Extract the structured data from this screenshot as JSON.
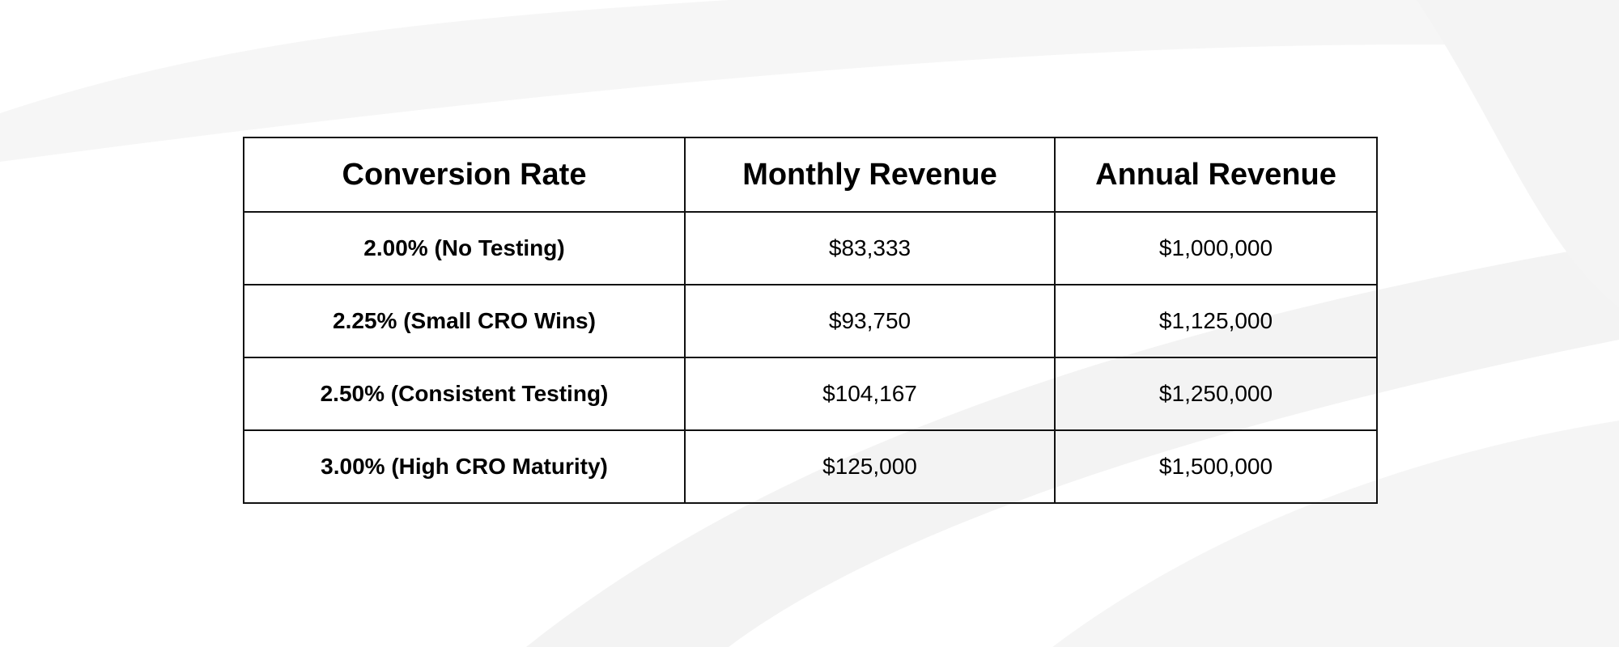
{
  "table": {
    "headers": [
      "Conversion Rate",
      "Monthly Revenue",
      "Annual Revenue"
    ],
    "rows": [
      [
        "2.00% (No Testing)",
        "$83,333",
        "$1,000,000"
      ],
      [
        "2.25% (Small CRO Wins)",
        "$93,750",
        "$1,125,000"
      ],
      [
        "2.50% (Consistent Testing)",
        "$104,167",
        "$1,250,000"
      ],
      [
        "3.00% (High CRO Maturity)",
        "$125,000",
        "$1,500,000"
      ]
    ]
  },
  "colors": {
    "background": "#ffffff",
    "border": "#111111",
    "text": "#000000",
    "swoosh": "#f2f2f2"
  }
}
